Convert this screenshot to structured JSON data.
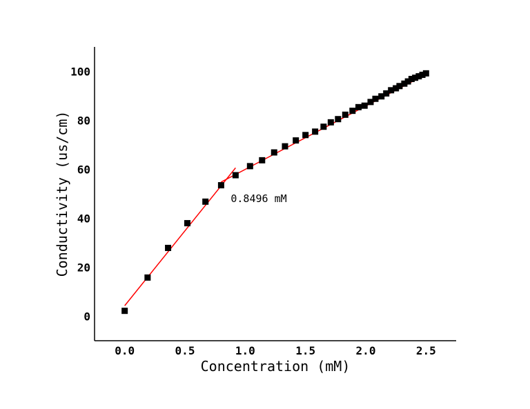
{
  "chart_data": {
    "type": "scatter",
    "title": "",
    "xlabel": "Concentration (mM)",
    "ylabel": "Conductivity (us/cm)",
    "xlim": [
      -0.25,
      2.75
    ],
    "ylim": [
      -10,
      110
    ],
    "x_ticks": [
      0.0,
      0.5,
      1.0,
      1.5,
      2.0,
      2.5
    ],
    "x_tick_labels": [
      "0.0",
      "0.5",
      "1.0",
      "1.5",
      "2.0",
      "2.5"
    ],
    "y_ticks": [
      0,
      20,
      40,
      60,
      80,
      100
    ],
    "y_tick_labels": [
      "0",
      "20",
      "40",
      "60",
      "80",
      "100"
    ],
    "grid": false,
    "legend": "none",
    "points": {
      "x": [
        0.0,
        0.19,
        0.36,
        0.52,
        0.67,
        0.8,
        0.92,
        1.04,
        1.14,
        1.24,
        1.33,
        1.42,
        1.5,
        1.58,
        1.65,
        1.71,
        1.77,
        1.83,
        1.89,
        1.94,
        1.99,
        2.04,
        2.08,
        2.13,
        2.17,
        2.21,
        2.25,
        2.28,
        2.32,
        2.35,
        2.38,
        2.41,
        2.44,
        2.47,
        2.5
      ],
      "y": [
        2.2,
        15.8,
        27.9,
        38.0,
        46.8,
        53.5,
        57.6,
        61.3,
        63.7,
        66.9,
        69.4,
        71.8,
        74.0,
        75.4,
        77.4,
        79.2,
        80.5,
        82.3,
        83.9,
        85.4,
        86.0,
        87.5,
        88.8,
        89.8,
        91.0,
        92.3,
        93.1,
        94.0,
        95.0,
        95.9,
        96.9,
        97.4,
        98.0,
        98.6,
        99.2
      ],
      "color": "#000000",
      "marker": "square"
    },
    "fit_lines": [
      {
        "x": [
          0.0,
          0.92
        ],
        "y": [
          4.3,
          60.6
        ],
        "color": "#ff0000"
      },
      {
        "x": [
          0.8,
          2.5
        ],
        "y": [
          54.8,
          98.8
        ],
        "color": "#ff0000"
      }
    ],
    "annotation": {
      "text": "0.8496 mM",
      "x": 0.88,
      "y": 48.0
    }
  }
}
